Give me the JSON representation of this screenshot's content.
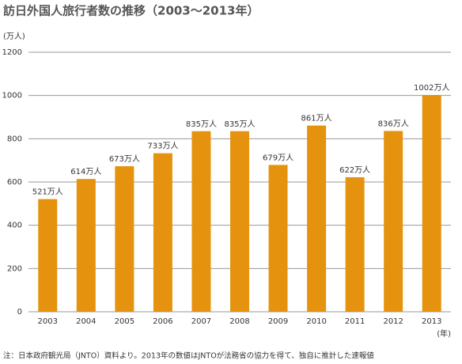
{
  "chart_data": {
    "type": "bar",
    "title": "訪日外国人旅行者数の推移（2003〜2013年）",
    "y_label": "(万人)",
    "x_label": "(年)",
    "note": "注：日本政府観光局（JNTO）資料より。2013年の数値はJNTOが法務省の協力を得て、独自に推計した速報値",
    "categories": [
      "2003",
      "2004",
      "2005",
      "2006",
      "2007",
      "2008",
      "2009",
      "2010",
      "2011",
      "2012",
      "2013"
    ],
    "values": [
      521,
      614,
      673,
      733,
      835,
      835,
      679,
      861,
      622,
      836,
      1002
    ],
    "value_labels": [
      "521万人",
      "614万人",
      "673万人",
      "733万人",
      "835万人",
      "835万人",
      "679万人",
      "861万人",
      "622万人",
      "836万人",
      "1002万人"
    ],
    "color": "#e5930e",
    "ylim": [
      0,
      1200
    ],
    "yticks": [
      0,
      200,
      400,
      600,
      800,
      1000,
      1200
    ],
    "grid": true
  }
}
